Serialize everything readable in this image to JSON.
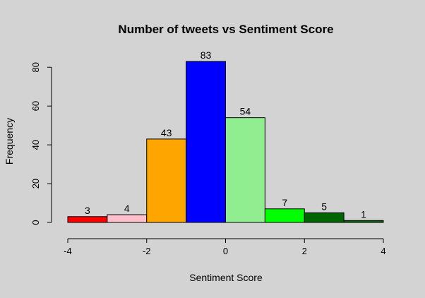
{
  "chart_data": {
    "type": "bar",
    "title": "Number of tweets vs Sentiment Score",
    "xlabel": "Sentiment Score",
    "ylabel": "Frequency",
    "bins": [
      {
        "from": -4,
        "to": -3,
        "value": 3,
        "label": "3",
        "color": "#ff0000"
      },
      {
        "from": -3,
        "to": -2,
        "value": 4,
        "label": "4",
        "color": "#ffc0cb"
      },
      {
        "from": -2,
        "to": -1,
        "value": 43,
        "label": "43",
        "color": "#ffa500"
      },
      {
        "from": -1,
        "to": 0,
        "value": 83,
        "label": "83",
        "color": "#0000ff"
      },
      {
        "from": 0,
        "to": 1,
        "value": 54,
        "label": "54",
        "color": "#90ee90"
      },
      {
        "from": 1,
        "to": 2,
        "value": 7,
        "label": "7",
        "color": "#00ff00"
      },
      {
        "from": 2,
        "to": 3,
        "value": 5,
        "label": "5",
        "color": "#006400"
      },
      {
        "from": 3,
        "to": 4,
        "value": 1,
        "label": "1",
        "color": "#006400"
      }
    ],
    "xlim": [
      -4,
      4
    ],
    "ylim": [
      0,
      83
    ],
    "xticks": [
      -4,
      -2,
      0,
      2,
      4
    ],
    "xtick_labels": [
      "-4",
      "-2",
      "0",
      "2",
      "4"
    ],
    "yticks": [
      0,
      20,
      40,
      60,
      80
    ],
    "ytick_labels": [
      "0",
      "20",
      "40",
      "60",
      "80"
    ],
    "background": "#d3d3d3",
    "grid": false
  }
}
